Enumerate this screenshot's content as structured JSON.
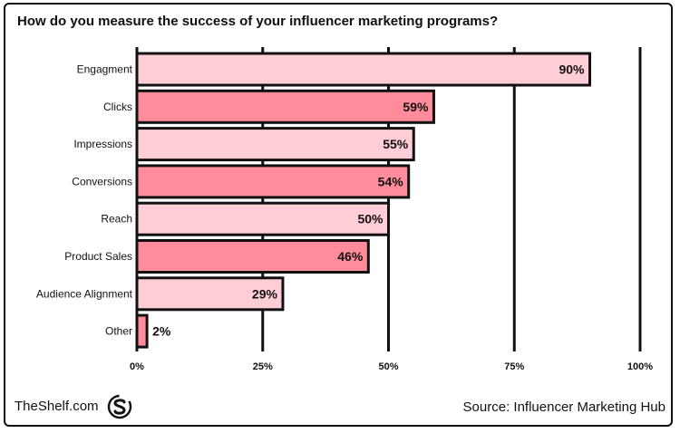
{
  "title": "How do you measure the success of your influencer marketing programs?",
  "brand": "TheShelf.com",
  "brand_logo_icon": "s-circle-logo-icon",
  "source": "Source: Influencer Marketing Hub",
  "colors": {
    "light_bar": "#ffcdd6",
    "dark_bar": "#ff8b9b",
    "stroke": "#111111"
  },
  "chart_data": {
    "type": "bar",
    "orientation": "horizontal",
    "title": "How do you measure the success of your influencer marketing programs?",
    "categories": [
      "Engagment",
      "Clicks",
      "Impressions",
      "Conversions",
      "Reach",
      "Product Sales",
      "Audience Alignment",
      "Other"
    ],
    "values": [
      90,
      59,
      55,
      54,
      50,
      46,
      29,
      2
    ],
    "value_labels": [
      "90%",
      "59%",
      "55%",
      "54%",
      "50%",
      "46%",
      "29%",
      "2%"
    ],
    "xlim": [
      0,
      100
    ],
    "x_ticks": [
      0,
      25,
      50,
      75,
      100
    ],
    "x_tick_labels": [
      "0%",
      "25%",
      "50%",
      "75%",
      "100%"
    ],
    "grid": true,
    "bar_colors": [
      "#ffcdd6",
      "#ff8b9b",
      "#ffcdd6",
      "#ff8b9b",
      "#ffcdd6",
      "#ff8b9b",
      "#ffcdd6",
      "#ff8b9b"
    ]
  }
}
